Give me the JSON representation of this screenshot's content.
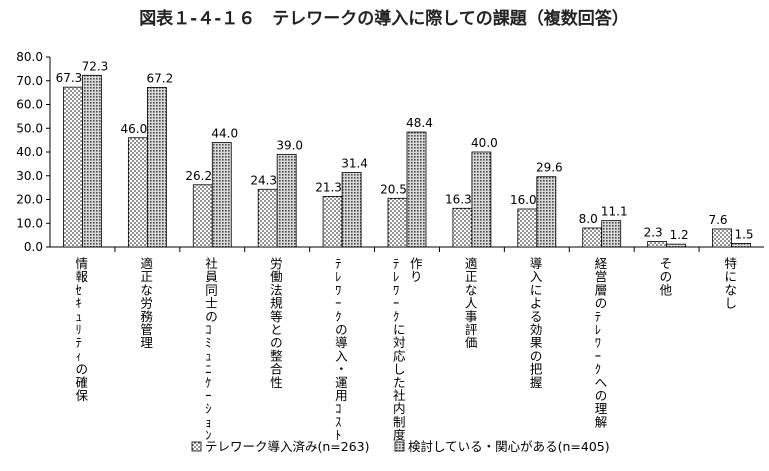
{
  "chart_data": {
    "type": "bar",
    "title": "図表１-４-１６　テレワークの導入に際しての課題（複数回答）",
    "categories": [
      [
        "情報ｾｷｭﾘﾃｨの確保"
      ],
      [
        "適正な労務管理"
      ],
      [
        "社員同士のｺﾐｭﾆｹｰｼｮﾝ"
      ],
      [
        "労働法規等との整合性"
      ],
      [
        "ﾃﾚﾜｰｸの導入・運用ｺｽﾄ"
      ],
      [
        "ﾃﾚﾜｰｸに対応した社内制度",
        "作り"
      ],
      [
        "適正な人事評価"
      ],
      [
        "導入による効果の把握"
      ],
      [
        "経営層のﾃﾚﾜｰｸへの理解"
      ],
      [
        "その他"
      ],
      [
        "特になし"
      ]
    ],
    "series": [
      {
        "name": "テレワーク導入済み(n=263)",
        "pattern": "dots",
        "values": [
          67.3,
          46.0,
          26.2,
          24.3,
          21.3,
          20.5,
          16.3,
          16.0,
          8.0,
          2.3,
          7.6
        ]
      },
      {
        "name": "検討している・関心がある(n=405)",
        "pattern": "grid",
        "values": [
          72.3,
          67.2,
          44.0,
          39.0,
          31.4,
          48.4,
          40.0,
          29.6,
          11.1,
          1.2,
          1.5
        ]
      }
    ],
    "ylim": [
      0,
      80
    ],
    "yticks": [
      "0.0",
      "10.0",
      "20.0",
      "30.0",
      "40.0",
      "50.0",
      "60.0",
      "70.0",
      "80.0"
    ],
    "value_format": "one-decimal",
    "grid": false,
    "legend_position": "bottom"
  }
}
